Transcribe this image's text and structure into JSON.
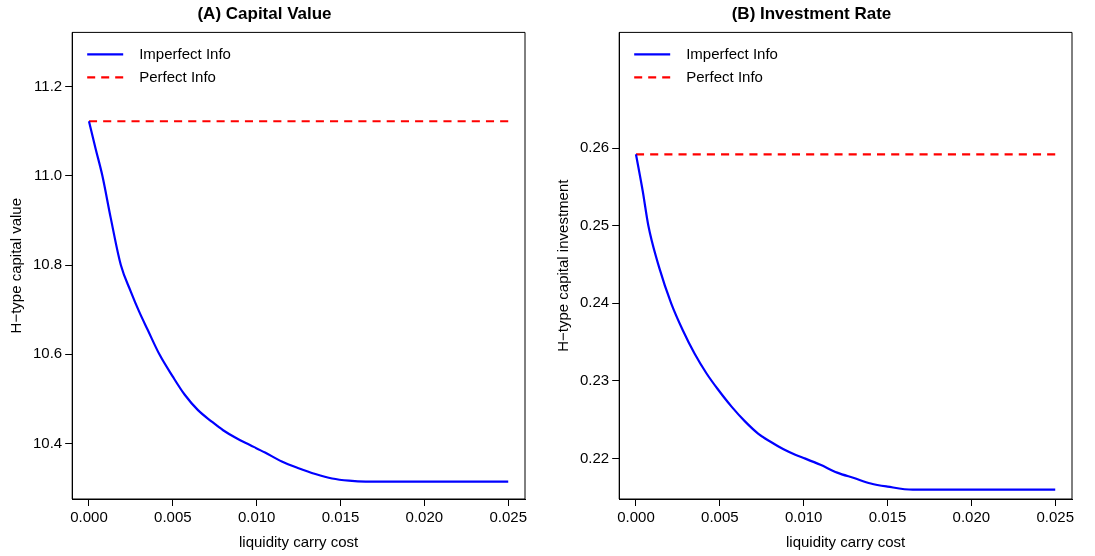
{
  "chart_data": [
    {
      "type": "line",
      "title": "(A) Capital Value",
      "xlabel": "liquidity carry cost",
      "ylabel": "H−type capital value",
      "legend": "top left",
      "marker": "none",
      "xlim": [
        -0.001,
        0.026
      ],
      "xticks": [
        {
          "value": 0,
          "label": "0.000"
        },
        0.005,
        {
          "value": 0.01,
          "label": "0.010"
        },
        0.015,
        {
          "value": 0.02,
          "label": "0.020"
        },
        0.025
      ],
      "ylim": [
        10.276,
        11.321
      ],
      "yticks": [
        10.4,
        10.6,
        10.8,
        {
          "value": 11,
          "label": "11.0"
        },
        11.2
      ],
      "series": [
        {
          "name": "Imperfect Info",
          "color": "#0000ff",
          "line_style": "solid",
          "x": [
            0,
            0.0004,
            0.0008,
            0.0013,
            0.0019,
            0.0025,
            0.003,
            0.0035,
            0.0042,
            0.005,
            0.0057,
            0.0065,
            0.0073,
            0.008,
            0.0088,
            0.0096,
            0.0105,
            0.0115,
            0.0125,
            0.0135,
            0.0145,
            0.0155,
            0.0165,
            0.02,
            0.025
          ],
          "values": [
            11.122,
            11.06,
            11.0,
            10.905,
            10.8,
            10.74,
            10.695,
            10.655,
            10.6,
            10.55,
            10.51,
            10.475,
            10.45,
            10.43,
            10.412,
            10.397,
            10.38,
            10.36,
            10.345,
            10.332,
            10.322,
            10.317,
            10.315,
            10.315,
            10.315
          ]
        },
        {
          "name": "Perfect Info",
          "color": "#ff0000",
          "line_style": "dashed",
          "x": [
            0,
            0.025
          ],
          "values": [
            11.122,
            11.122
          ]
        }
      ]
    },
    {
      "type": "line",
      "title": "(B) Investment Rate",
      "xlabel": "liquidity carry cost",
      "ylabel": "H−type capital investment",
      "legend": "top left",
      "marker": "none",
      "xlim": [
        -0.001,
        0.026
      ],
      "xticks": [
        {
          "value": 0,
          "label": "0.000"
        },
        0.005,
        {
          "value": 0.01,
          "label": "0.010"
        },
        0.015,
        {
          "value": 0.02,
          "label": "0.020"
        },
        0.025
      ],
      "ylim": [
        0.2148,
        0.2749
      ],
      "yticks": [
        0.22,
        0.23,
        0.24,
        0.25,
        0.26
      ],
      "series": [
        {
          "name": "Imperfect Info",
          "color": "#0000ff",
          "line_style": "solid",
          "x": [
            0,
            0.0004,
            0.00074,
            0.0014,
            0.0021,
            0.0028,
            0.0035,
            0.0042,
            0.00486,
            0.0057,
            0.0065,
            0.0073,
            0.008,
            0.0088,
            0.0095,
            0.0101,
            0.011,
            0.012,
            0.013,
            0.014,
            0.015,
            0.0165,
            0.02,
            0.025
          ],
          "values": [
            0.2592,
            0.2545,
            0.25,
            0.2445,
            0.24,
            0.2365,
            0.2335,
            0.231,
            0.229,
            0.2267,
            0.2248,
            0.2232,
            0.2222,
            0.2212,
            0.2205,
            0.22,
            0.2192,
            0.2182,
            0.2175,
            0.2168,
            0.2164,
            0.216,
            0.216,
            0.216
          ]
        },
        {
          "name": "Perfect Info",
          "color": "#ff0000",
          "line_style": "dashed",
          "x": [
            0,
            0.025
          ],
          "values": [
            0.2592,
            0.2592
          ]
        }
      ]
    }
  ]
}
